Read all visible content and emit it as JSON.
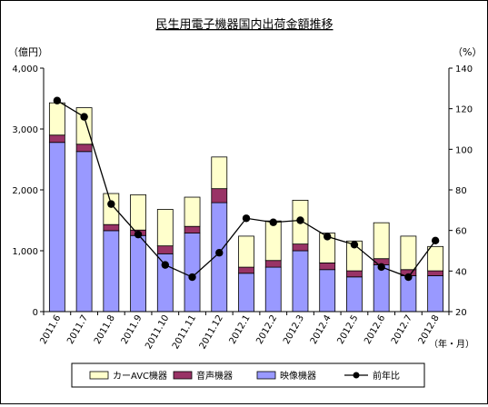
{
  "chart_data": {
    "type": "bar",
    "title": "民生用電子機器国内出荷金額推移",
    "y_left_unit": "（億円）",
    "y_right_unit": "（%）",
    "x_unit": "（年・月）",
    "y_left_range": [
      0,
      4000
    ],
    "y_left_ticks": [
      "0",
      "1,000",
      "2,000",
      "3,000",
      "4,000"
    ],
    "y_right_range": [
      20,
      140
    ],
    "y_right_ticks": [
      "20",
      "40",
      "60",
      "80",
      "100",
      "120",
      "140"
    ],
    "categories": [
      "2011.6",
      "2011.7",
      "2011.8",
      "2011.9",
      "2011.10",
      "2011.11",
      "2011.12",
      "2012.1",
      "2012.2",
      "2012.3",
      "2012.4",
      "2012.5",
      "2012.6",
      "2012.7",
      "2012.8"
    ],
    "series": [
      {
        "name": "映像機器",
        "stack": true,
        "color": "#9999ff",
        "values": [
          2780,
          2630,
          1330,
          1250,
          950,
          1290,
          1790,
          630,
          730,
          1000,
          690,
          570,
          770,
          590,
          590
        ]
      },
      {
        "name": "音声機器",
        "stack": true,
        "color": "#993366",
        "values": [
          120,
          120,
          100,
          90,
          130,
          110,
          230,
          100,
          110,
          110,
          110,
          100,
          100,
          100,
          80
        ]
      },
      {
        "name": "カーAVC機器",
        "stack": true,
        "color": "#ffffcc",
        "values": [
          530,
          600,
          510,
          580,
          600,
          480,
          520,
          510,
          650,
          720,
          490,
          490,
          590,
          550,
          400
        ]
      },
      {
        "name": "前年比",
        "type": "line",
        "axis": "right",
        "color": "#000000",
        "values": [
          124,
          116,
          73,
          58,
          43,
          37,
          49,
          66,
          64,
          65,
          57,
          53,
          42,
          37,
          55
        ]
      }
    ],
    "legend_position": "bottom",
    "grid": false
  }
}
